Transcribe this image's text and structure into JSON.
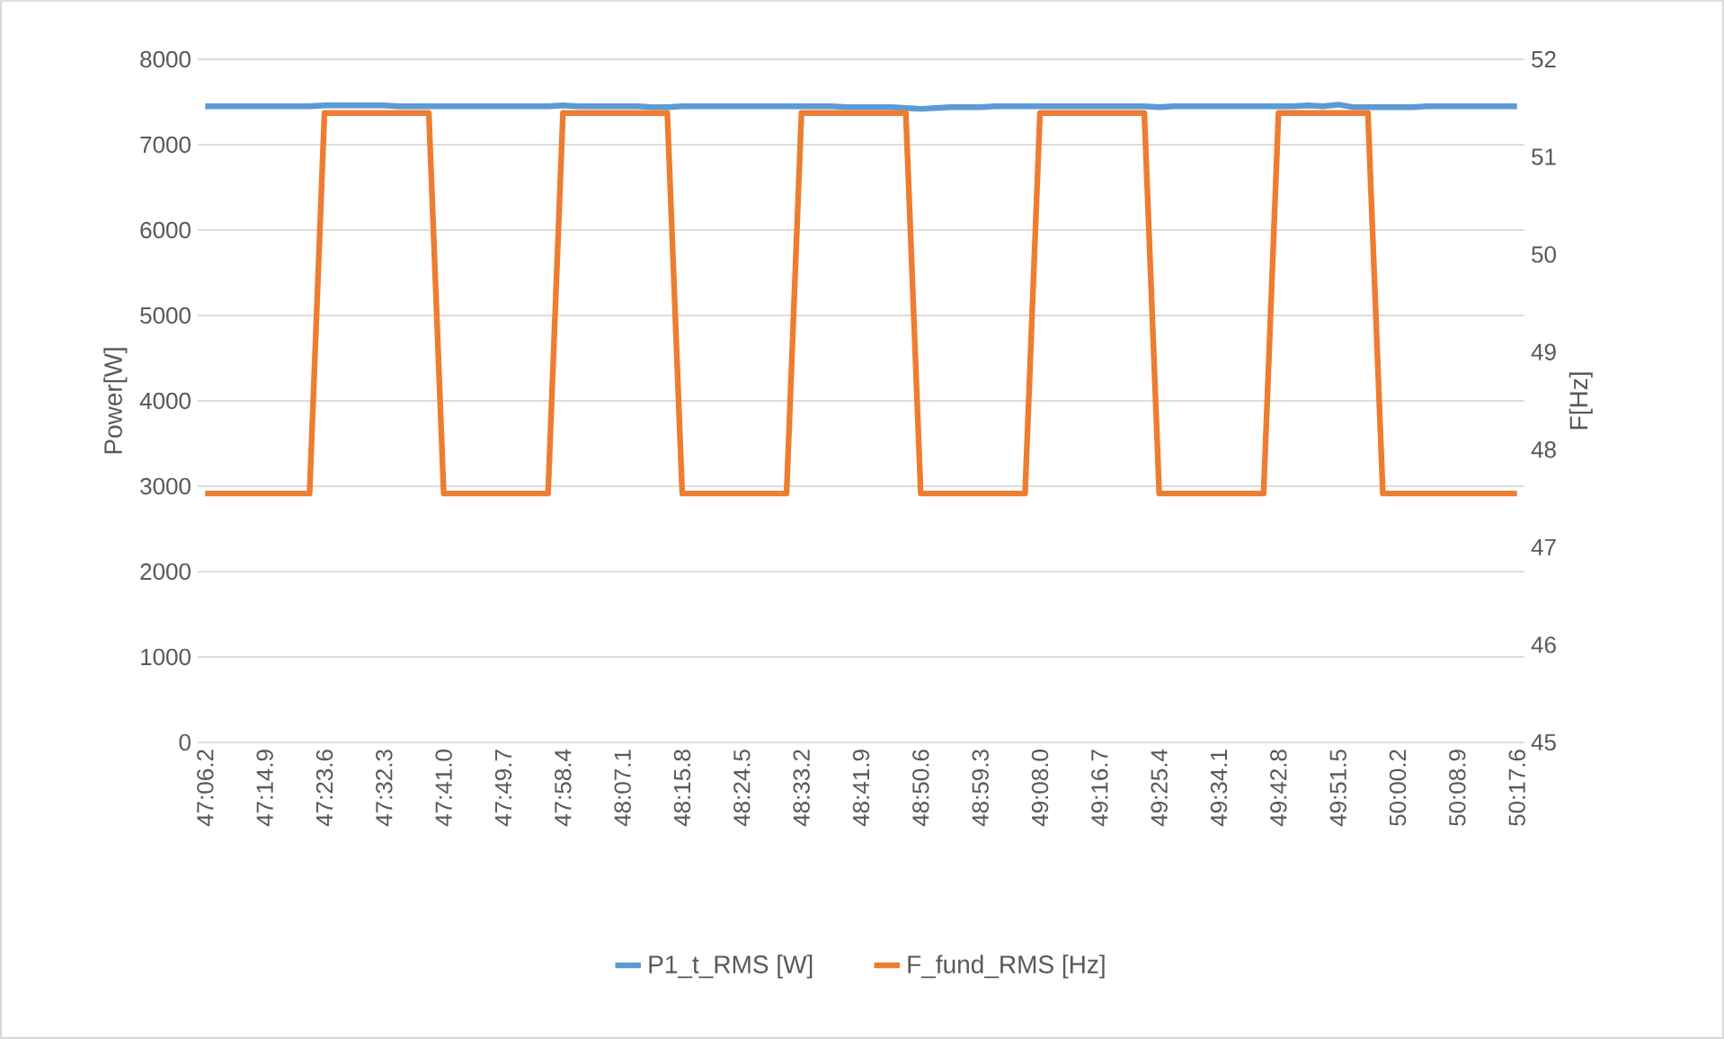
{
  "chart_data": {
    "type": "line",
    "ylabel": "Power[W]",
    "y2label": "F[Hz]",
    "categories": [
      "47:06.2",
      null,
      null,
      null,
      "47:14.9",
      null,
      null,
      null,
      "47:23.6",
      null,
      null,
      null,
      "47:32.3",
      null,
      null,
      null,
      "47:41.0",
      null,
      null,
      null,
      "47:49.7",
      null,
      null,
      null,
      "47:58.4",
      null,
      null,
      null,
      "48:07.1",
      null,
      null,
      null,
      "48:15.8",
      null,
      null,
      null,
      "48:24.5",
      null,
      null,
      null,
      "48:33.2",
      null,
      null,
      null,
      "48:41.9",
      null,
      null,
      null,
      "48:50.6",
      null,
      null,
      null,
      "48:59.3",
      null,
      null,
      null,
      "49:08.0",
      null,
      null,
      null,
      "49:16.7",
      null,
      null,
      null,
      "49:25.4",
      null,
      null,
      null,
      "49:34.1",
      null,
      null,
      null,
      "49:42.8",
      null,
      null,
      null,
      "49:51.5",
      null,
      null,
      null,
      "50:00.2",
      null,
      null,
      null,
      "50:08.9",
      null,
      null,
      null,
      "50:17.6"
    ],
    "series": [
      {
        "name": "P1_t_RMS [W]",
        "color": "#5b9bd5",
        "values": [
          7450,
          7450,
          7450,
          7450,
          7450,
          7450,
          7450,
          7450,
          7460,
          7460,
          7460,
          7460,
          7460,
          7450,
          7450,
          7450,
          7450,
          7450,
          7450,
          7450,
          7450,
          7450,
          7450,
          7450,
          7460,
          7450,
          7450,
          7450,
          7450,
          7450,
          7440,
          7440,
          7450,
          7450,
          7450,
          7450,
          7450,
          7450,
          7450,
          7450,
          7450,
          7450,
          7450,
          7440,
          7440,
          7440,
          7440,
          7430,
          7420,
          7430,
          7440,
          7440,
          7440,
          7450,
          7450,
          7450,
          7450,
          7450,
          7450,
          7450,
          7450,
          7450,
          7450,
          7450,
          7440,
          7450,
          7450,
          7450,
          7450,
          7450,
          7450,
          7450,
          7450,
          7450,
          7460,
          7450,
          7470,
          7440,
          7440,
          7440,
          7440,
          7440,
          7450,
          7450,
          7450,
          7450,
          7450,
          7450,
          7450
        ]
      },
      {
        "name": "F_fund_RMS [Hz]",
        "color": "#ed7d31",
        "axis": "y2",
        "values": [
          47.55,
          47.55,
          47.55,
          47.55,
          47.55,
          47.55,
          47.55,
          47.55,
          51.45,
          51.45,
          51.45,
          51.45,
          51.45,
          51.45,
          51.45,
          51.45,
          47.55,
          47.55,
          47.55,
          47.55,
          47.55,
          47.55,
          47.55,
          47.55,
          51.45,
          51.45,
          51.45,
          51.45,
          51.45,
          51.45,
          51.45,
          51.45,
          47.55,
          47.55,
          47.55,
          47.55,
          47.55,
          47.55,
          47.55,
          47.55,
          51.45,
          51.45,
          51.45,
          51.45,
          51.45,
          51.45,
          51.45,
          51.45,
          47.55,
          47.55,
          47.55,
          47.55,
          47.55,
          47.55,
          47.55,
          47.55,
          51.45,
          51.45,
          51.45,
          51.45,
          51.45,
          51.45,
          51.45,
          51.45,
          47.55,
          47.55,
          47.55,
          47.55,
          47.55,
          47.55,
          47.55,
          47.55,
          51.45,
          51.45,
          51.45,
          51.45,
          51.45,
          51.45,
          51.45,
          47.55,
          47.55,
          47.55,
          47.55,
          47.55,
          47.55,
          47.55,
          47.55,
          47.55,
          47.55
        ]
      }
    ],
    "ylim": [
      0,
      8000
    ],
    "yticks": [
      0,
      1000,
      2000,
      3000,
      4000,
      5000,
      6000,
      7000,
      8000
    ],
    "y2lim": [
      45,
      52
    ],
    "y2ticks": [
      45,
      46,
      47,
      48,
      49,
      50,
      51,
      52
    ],
    "grid": "y",
    "legend": "bottom",
    "marker": "none",
    "line_style": "solid"
  }
}
